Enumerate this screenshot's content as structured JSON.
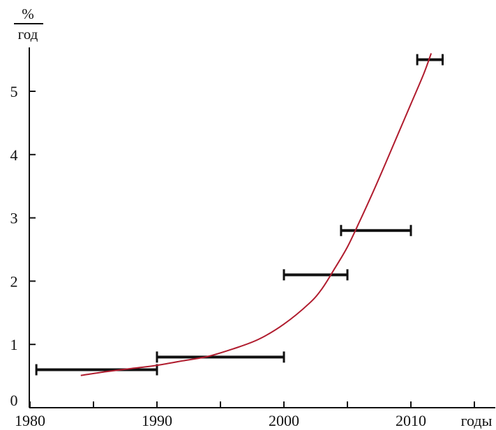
{
  "chart_data": {
    "type": "line",
    "title": "",
    "xlabel": "годы",
    "ylabel_numerator": "%",
    "ylabel_denominator": "год",
    "xlim": [
      1980,
      2015
    ],
    "ylim": [
      0,
      5.6
    ],
    "x_ticks": [
      1980,
      1985,
      1990,
      1995,
      2000,
      2005,
      2010,
      2015
    ],
    "x_tick_labels": [
      {
        "x": 1980,
        "label": "1980"
      },
      {
        "x": 1990,
        "label": "1990"
      },
      {
        "x": 2000,
        "label": "2000"
      },
      {
        "x": 2010,
        "label": "2010"
      }
    ],
    "y_ticks": [
      0,
      1,
      2,
      3,
      4,
      5
    ],
    "y_tick_labels": [
      "0",
      "1",
      "2",
      "3",
      "4",
      "5"
    ],
    "grid": false,
    "legend": "none",
    "intervals": [
      {
        "x_start": 1980.5,
        "x_end": 1990,
        "y": 0.6
      },
      {
        "x_start": 1990,
        "x_end": 2000,
        "y": 0.8
      },
      {
        "x_start": 2000,
        "x_end": 2005,
        "y": 2.1
      },
      {
        "x_start": 2004.5,
        "x_end": 2010,
        "y": 2.8
      },
      {
        "x_start": 2010.5,
        "x_end": 2012.5,
        "y": 5.5
      }
    ],
    "trend_curve": {
      "color": "#b01c2e",
      "x": [
        1984,
        1986,
        1988,
        1990,
        1992,
        1994,
        1996,
        1998,
        2000,
        2002,
        2003,
        2004,
        2005,
        2006,
        2007,
        2008,
        2009,
        2010,
        2011,
        2011.6
      ],
      "y": [
        0.51,
        0.57,
        0.62,
        0.67,
        0.74,
        0.81,
        0.93,
        1.08,
        1.32,
        1.65,
        1.88,
        2.2,
        2.54,
        2.96,
        3.4,
        3.86,
        4.33,
        4.8,
        5.27,
        5.6
      ]
    },
    "colors": {
      "axis": "#111111",
      "interval": "#111111",
      "curve": "#b01c2e"
    }
  }
}
